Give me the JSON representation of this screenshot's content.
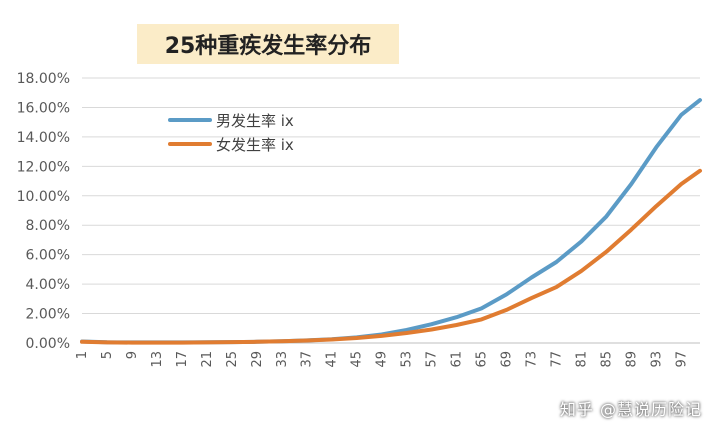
{
  "chart_data": {
    "type": "line",
    "title": "25种重疾发生率分布",
    "xlabel": "",
    "ylabel": "",
    "x_ticks": [
      "1",
      "5",
      "9",
      "13",
      "17",
      "21",
      "25",
      "29",
      "33",
      "37",
      "41",
      "45",
      "49",
      "53",
      "57",
      "61",
      "65",
      "69",
      "73",
      "77",
      "81",
      "85",
      "89",
      "93",
      "97"
    ],
    "y_ticks": [
      "0.00%",
      "2.00%",
      "4.00%",
      "6.00%",
      "8.00%",
      "10.00%",
      "12.00%",
      "14.00%",
      "16.00%",
      "18.00%"
    ],
    "ylim": [
      0,
      0.18
    ],
    "xlim": [
      1,
      100
    ],
    "grid": {
      "x": false,
      "y": true
    },
    "legend": "upper-left inside plot",
    "series": [
      {
        "name": "男发生率 ix",
        "color": "#5b9bc6",
        "points": [
          [
            1,
            0.001
          ],
          [
            5,
            0.0005
          ],
          [
            9,
            0.0004
          ],
          [
            13,
            0.0004
          ],
          [
            17,
            0.0004
          ],
          [
            21,
            0.0005
          ],
          [
            25,
            0.0006
          ],
          [
            29,
            0.0008
          ],
          [
            33,
            0.0012
          ],
          [
            37,
            0.0018
          ],
          [
            41,
            0.0026
          ],
          [
            45,
            0.0038
          ],
          [
            49,
            0.0058
          ],
          [
            53,
            0.0088
          ],
          [
            57,
            0.0128
          ],
          [
            61,
            0.0175
          ],
          [
            65,
            0.0235
          ],
          [
            69,
            0.033
          ],
          [
            73,
            0.0445
          ],
          [
            77,
            0.055
          ],
          [
            81,
            0.069
          ],
          [
            85,
            0.086
          ],
          [
            89,
            0.108
          ],
          [
            93,
            0.133
          ],
          [
            97,
            0.155
          ],
          [
            100,
            0.165
          ]
        ]
      },
      {
        "name": "女发生率 ix",
        "color": "#e07c31",
        "points": [
          [
            1,
            0.0008
          ],
          [
            5,
            0.0004
          ],
          [
            9,
            0.0003
          ],
          [
            13,
            0.0003
          ],
          [
            17,
            0.0003
          ],
          [
            21,
            0.0004
          ],
          [
            25,
            0.0006
          ],
          [
            29,
            0.0008
          ],
          [
            33,
            0.0012
          ],
          [
            37,
            0.0017
          ],
          [
            41,
            0.0024
          ],
          [
            45,
            0.0034
          ],
          [
            49,
            0.0048
          ],
          [
            53,
            0.0068
          ],
          [
            57,
            0.0092
          ],
          [
            61,
            0.0122
          ],
          [
            65,
            0.016
          ],
          [
            69,
            0.0225
          ],
          [
            73,
            0.0305
          ],
          [
            77,
            0.038
          ],
          [
            81,
            0.049
          ],
          [
            85,
            0.062
          ],
          [
            89,
            0.077
          ],
          [
            93,
            0.093
          ],
          [
            97,
            0.108
          ],
          [
            100,
            0.117
          ]
        ]
      }
    ]
  },
  "watermark": "知乎 @慧说历险记"
}
